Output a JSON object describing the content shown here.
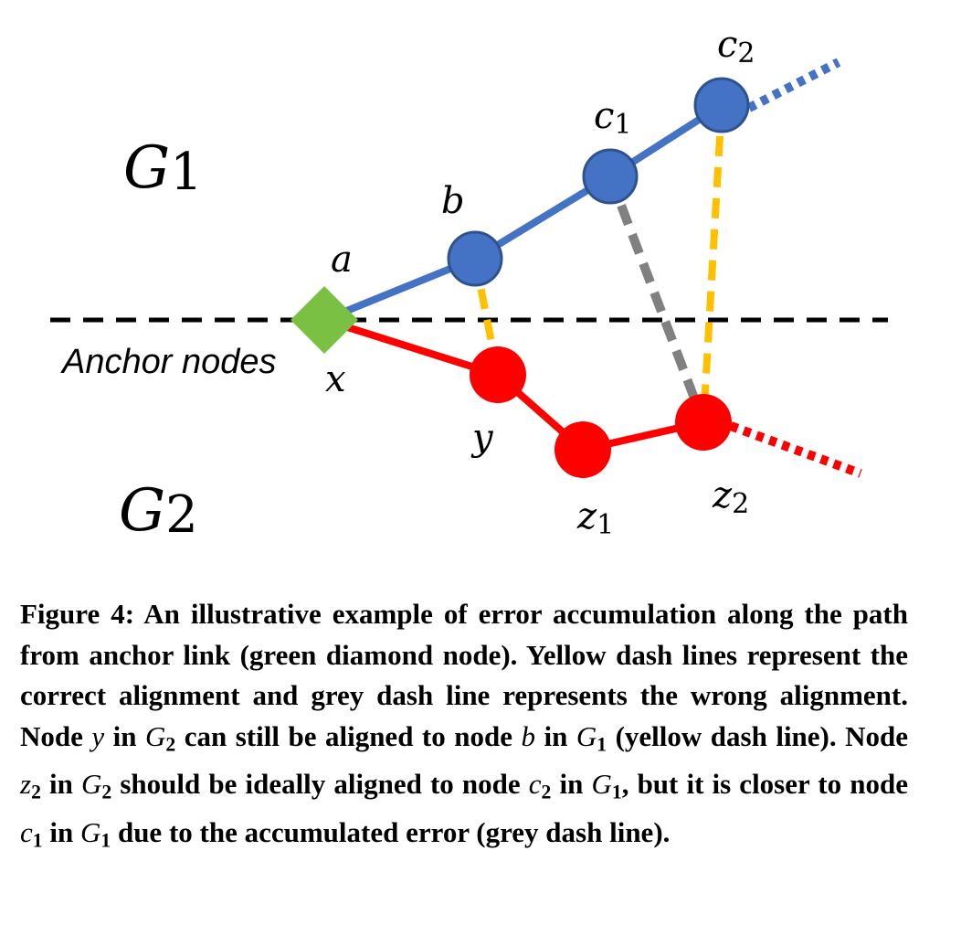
{
  "graphs": {
    "g1_symbol": "G",
    "g1_index": "1",
    "g2_symbol": "G",
    "g2_index": "2"
  },
  "anchor_label": "Anchor nodes",
  "nodes": {
    "a": "a",
    "b": "b",
    "c1_base": "c",
    "c1_sub": "1",
    "c2_base": "c",
    "c2_sub": "2",
    "x": "x",
    "y": "y",
    "z1_base": "z",
    "z1_sub": "1",
    "z2_base": "z",
    "z2_sub": "2"
  },
  "colors": {
    "g1_nodes": "#4472c4",
    "g2_nodes": "#ff0000",
    "anchor": "#7ac143",
    "correct_alignment": "#ffc000",
    "wrong_alignment": "#808080",
    "anchor_line": "#000000"
  },
  "caption": {
    "p1": "Figure 4: An illustrative example of error accumulation along the path from anchor link (green diamond node). Yellow dash lines represent the correct alignment and grey dash line represents the wrong alignment. Node ",
    "v_y": "y",
    "p2": " in ",
    "g2_sym": "G",
    "g2_idx": "2",
    "p3": " can still be aligned to node ",
    "v_b": "b",
    "p4": " in ",
    "g1_sym": "G",
    "g1_idx": "1",
    "p5": " (yellow dash line).  Node ",
    "v_z": "z",
    "v_z_idx": "2",
    "p6": " in ",
    "g2b_sym": "G",
    "g2b_idx": "2",
    "p7": " should be ideally aligned to node ",
    "v_c2": "c",
    "v_c2_idx": "2",
    "p8": " in ",
    "g1b_sym": "G",
    "g1b_idx": "1",
    "p9": ", but it is closer to node ",
    "v_c1": "c",
    "v_c1_idx": "1",
    "p10": " in ",
    "g1c_sym": "G",
    "g1c_idx": "1",
    "p11": " due to the accumulated error (grey dash line)."
  }
}
